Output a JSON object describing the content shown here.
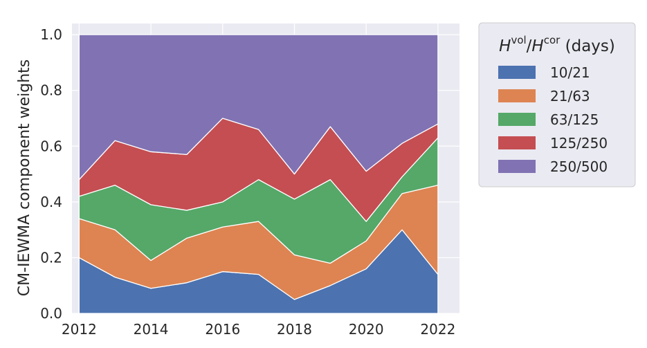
{
  "chart_data": {
    "type": "area",
    "stacked": true,
    "x": [
      2012,
      2013,
      2014,
      2015,
      2016,
      2017,
      2018,
      2019,
      2020,
      2021,
      2022
    ],
    "series": [
      {
        "name": "10/21",
        "color": "#4c72b0",
        "values": [
          0.2,
          0.13,
          0.09,
          0.11,
          0.15,
          0.14,
          0.05,
          0.1,
          0.16,
          0.3,
          0.14
        ]
      },
      {
        "name": "21/63",
        "color": "#dd8452",
        "values": [
          0.14,
          0.17,
          0.1,
          0.16,
          0.16,
          0.19,
          0.16,
          0.08,
          0.1,
          0.13,
          0.32
        ]
      },
      {
        "name": "63/125",
        "color": "#55a868",
        "values": [
          0.08,
          0.16,
          0.2,
          0.1,
          0.09,
          0.15,
          0.2,
          0.3,
          0.07,
          0.06,
          0.17
        ]
      },
      {
        "name": "125/250",
        "color": "#c44e52",
        "values": [
          0.06,
          0.16,
          0.19,
          0.2,
          0.3,
          0.18,
          0.09,
          0.19,
          0.18,
          0.12,
          0.05
        ]
      },
      {
        "name": "250/500",
        "color": "#8172b3",
        "values": [
          0.52,
          0.38,
          0.42,
          0.43,
          0.3,
          0.34,
          0.5,
          0.33,
          0.49,
          0.39,
          0.32
        ]
      }
    ],
    "xlabel": "",
    "ylabel": "CM-IEWMA component weights",
    "xticks": [
      "2012",
      "2014",
      "2016",
      "2018",
      "2020",
      "2022"
    ],
    "yticks": [
      "0.0",
      "0.2",
      "0.4",
      "0.6",
      "0.8",
      "1.0"
    ],
    "xlim": [
      2011.8,
      2022.6
    ],
    "ylim": [
      0,
      1.04
    ],
    "grid": true,
    "legend": {
      "placement": "outside-right-top",
      "title_h": "H",
      "title_vol": "vol",
      "title_slash": "/",
      "title_cor": "cor",
      "title_suffix": " (days)"
    },
    "colors": {
      "background": "#eaeaf2",
      "grid": "#ffffff"
    }
  }
}
